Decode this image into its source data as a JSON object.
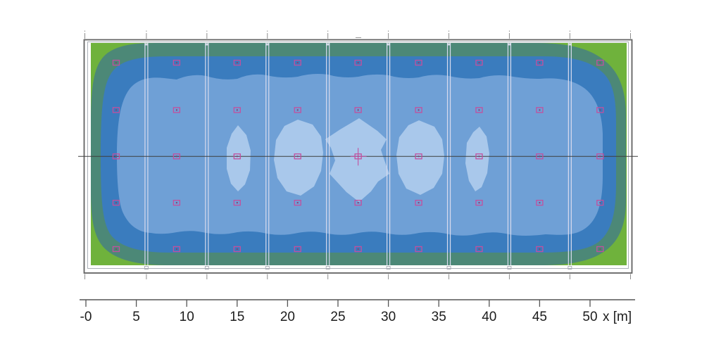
{
  "figure": {
    "background": "#ffffff"
  },
  "chart_data": {
    "type": "heatmap",
    "subtype": "illuminance-isolux-contour-floor-plan",
    "title": "",
    "xlabel": "x [m]",
    "x_axis_unit_label": "x [m]",
    "x_ticks": {
      "labels": [
        "-0",
        "5",
        "10",
        "15",
        "20",
        "25",
        "30",
        "35",
        "40",
        "45",
        "50"
      ],
      "values_m": [
        0,
        5,
        10,
        15,
        20,
        25,
        30,
        35,
        40,
        45,
        50
      ]
    },
    "estimated_room_size_m": {
      "width": 54,
      "depth": 23.2
    },
    "legend_position": "none",
    "grid": "section-lines-every-6m",
    "contour_levels": [
      {
        "order": 1,
        "name": "lowest",
        "color": "#6FB23C"
      },
      {
        "order": 2,
        "name": "low",
        "color": "#4C8877"
      },
      {
        "order": 3,
        "name": "medium",
        "color": "#3A7CBE"
      },
      {
        "order": 4,
        "name": "high",
        "color": "#6FA0D6"
      },
      {
        "order": 5,
        "name": "highest",
        "color": "#A9C8EB"
      }
    ],
    "section_lines_m": [
      6,
      12,
      18,
      24,
      30,
      36,
      42,
      48
    ],
    "luminaire_grid": {
      "symbol": "small-open-rectangle",
      "symbol_color": "#C2509E",
      "columns_m": [
        3,
        9,
        15,
        21,
        27,
        33,
        39,
        45,
        51
      ],
      "rows_m": [
        2.1,
        6.8,
        11.4,
        16.0,
        20.6
      ],
      "count": 45
    },
    "center_marker": {
      "x_m": 27,
      "row_index": 2,
      "style": "crosshair"
    },
    "bright_patch_columns_m": [
      15,
      21,
      27,
      33,
      39
    ],
    "frame_color": "#636363",
    "centerline_color": "#3F3F3F",
    "axis_color": "#555555"
  }
}
